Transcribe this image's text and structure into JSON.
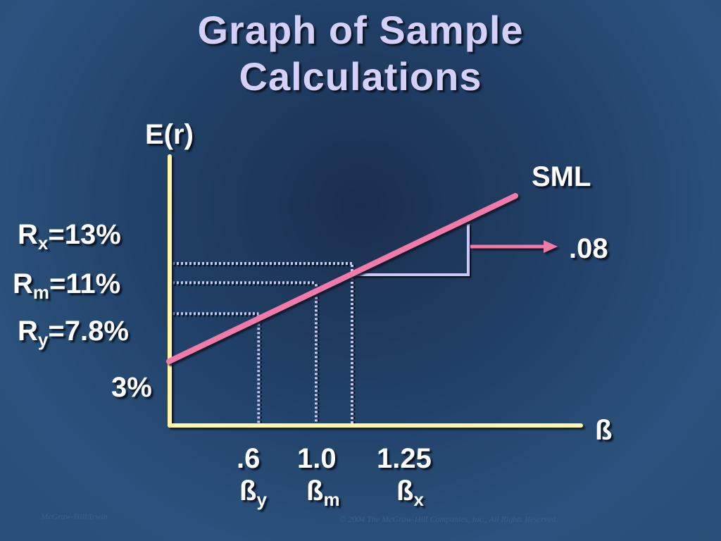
{
  "title": {
    "line1": "Graph of Sample",
    "line2": "Calculations"
  },
  "chart_data": {
    "type": "line",
    "xlabel": "ß",
    "ylabel": "E(r)",
    "series": [
      {
        "name": "SML",
        "x": [
          0,
          1.0,
          1.25
        ],
        "y": [
          3,
          11,
          13
        ]
      }
    ],
    "points": [
      {
        "beta": 0.6,
        "beta_label": ".6",
        "beta_symbol": "ß",
        "beta_sub": "y",
        "r_name": "R",
        "r_sub": "y",
        "r_value": "=7.8%",
        "ret": 7.8
      },
      {
        "beta": 1.0,
        "beta_label": "1.0",
        "beta_symbol": "ß",
        "beta_sub": "m",
        "r_name": "R",
        "r_sub": "m",
        "r_value": "=11%",
        "ret": 11
      },
      {
        "beta": 1.25,
        "beta_label": "1.25",
        "beta_symbol": "ß",
        "beta_sub": "x",
        "r_name": "R",
        "r_sub": "x",
        "r_value": "=13%",
        "ret": 13
      }
    ],
    "intercept_label": "3%",
    "slope_annotation": ".08",
    "colors": {
      "axis": "#fff6a8",
      "sml": "#f27aa8",
      "guide": "#c9c8f3",
      "arrow": "#f27aa8"
    }
  },
  "footer": {
    "left": "McGraw-Hill/Irwin",
    "right": "© 2004 The McGraw-Hill Companies, Inc., All Rights Reserved."
  }
}
